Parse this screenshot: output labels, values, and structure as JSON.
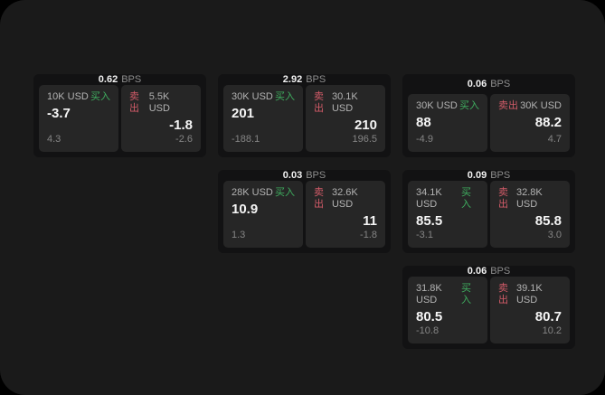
{
  "labels": {
    "bps_unit": "BPS",
    "buy": "买入",
    "sell": "卖出"
  },
  "colors": {
    "panel_bg": "#1a1a1a",
    "card_bg": "#121213",
    "subpanel_bg": "#262626",
    "buy_green": "#3fae5f",
    "sell_red": "#d25b68"
  },
  "cards": [
    {
      "bps": "0.62",
      "buy": {
        "notional": "10K USD",
        "value": "-3.7",
        "sub": "4.3"
      },
      "sell": {
        "notional": "5.5K USD",
        "value": "-1.8",
        "sub": "-2.6"
      }
    },
    {
      "bps": "2.92",
      "buy": {
        "notional": "30K USD",
        "value": "201",
        "sub": "-188.1"
      },
      "sell": {
        "notional": "30.1K USD",
        "value": "210",
        "sub": "196.5"
      }
    },
    {
      "bps": "0.06",
      "buy": {
        "notional": "30K USD",
        "value": "88",
        "sub": "-4.9"
      },
      "sell": {
        "notional": "30K USD",
        "value": "88.2",
        "sub": "4.7"
      }
    },
    {
      "bps": "0.03",
      "buy": {
        "notional": "28K USD",
        "value": "10.9",
        "sub": "1.3"
      },
      "sell": {
        "notional": "32.6K USD",
        "value": "11",
        "sub": "-1.8"
      }
    },
    {
      "bps": "0.09",
      "buy": {
        "notional": "34.1K USD",
        "value": "85.5",
        "sub": "-3.1"
      },
      "sell": {
        "notional": "32.8K USD",
        "value": "85.8",
        "sub": "3.0"
      }
    },
    {
      "bps": "0.06",
      "buy": {
        "notional": "31.8K USD",
        "value": "80.5",
        "sub": "-10.8"
      },
      "sell": {
        "notional": "39.1K USD",
        "value": "80.7",
        "sub": "10.2"
      }
    }
  ]
}
